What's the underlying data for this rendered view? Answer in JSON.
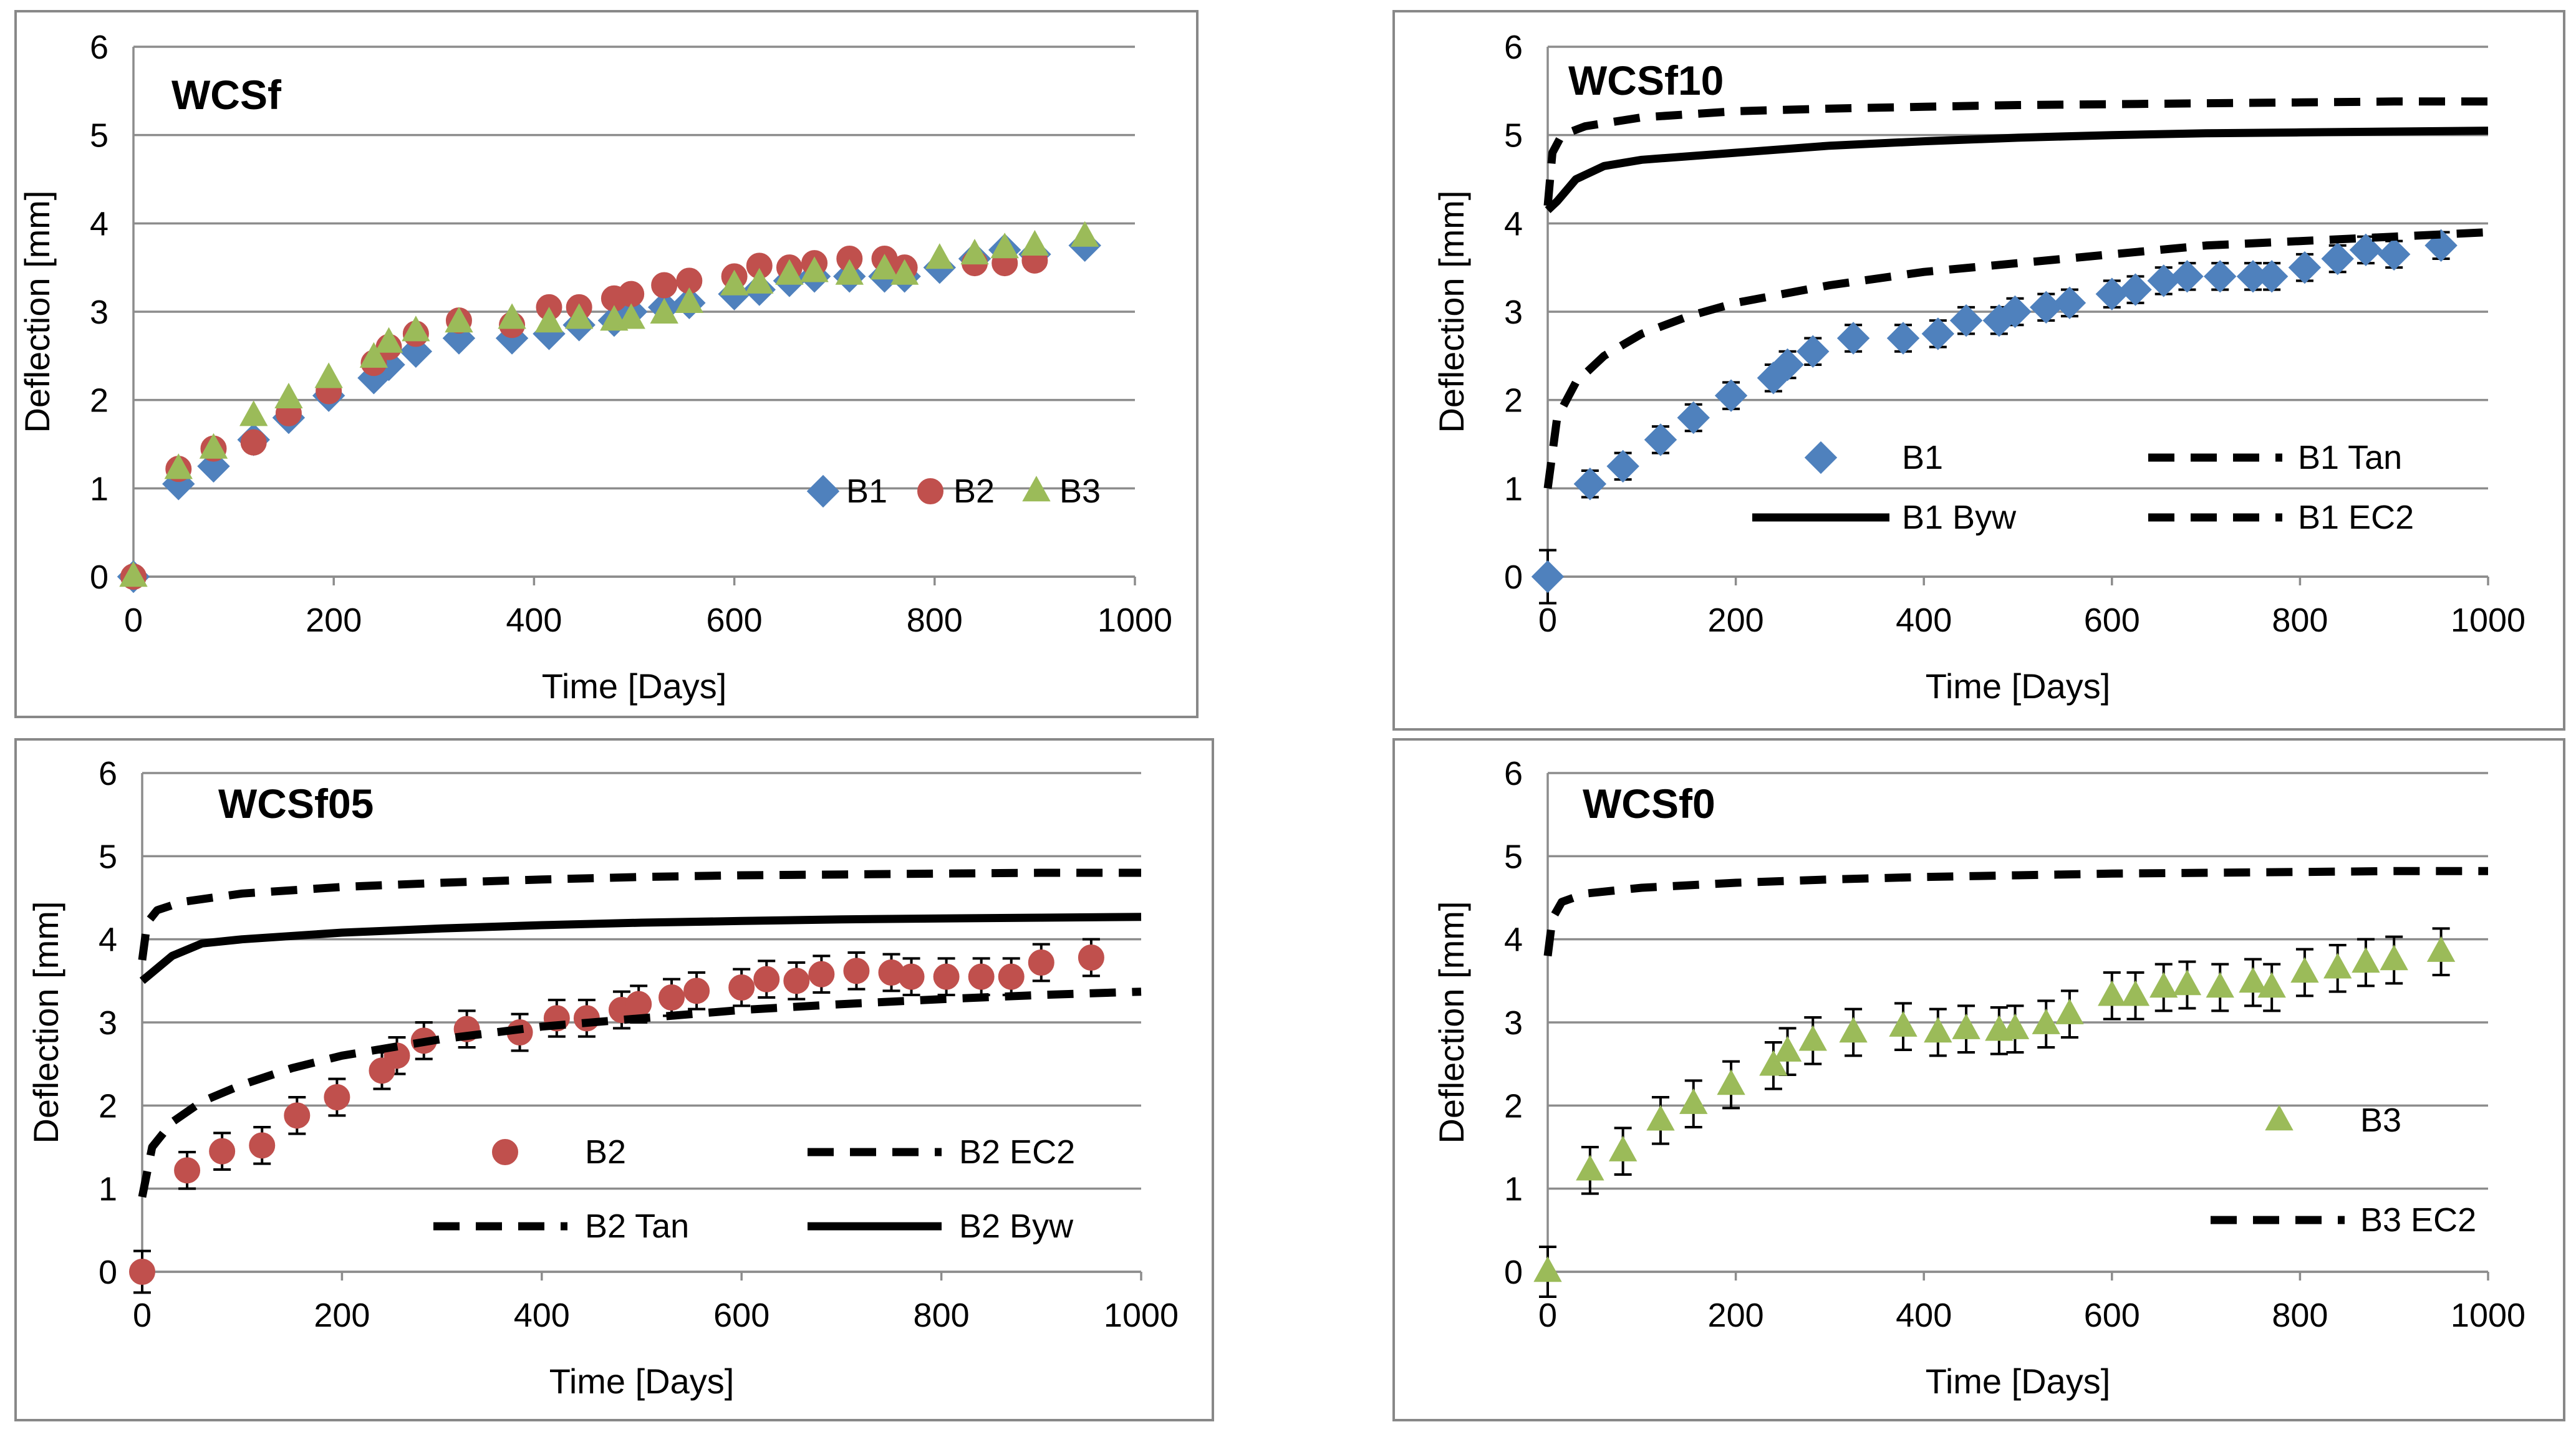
{
  "colors": {
    "B1": "#4f81bd",
    "B2": "#c0504d",
    "B3": "#9bbb59",
    "model": "#000000",
    "grid": "#8c8c8c"
  },
  "chart_data": [
    {
      "type": "scatter",
      "title": "WCSf",
      "xlabel": "Time [Days]",
      "ylabel": "Deflection [mm]",
      "xlim": [
        0,
        1000
      ],
      "ylim": [
        0,
        6
      ],
      "xticks": [
        0,
        200,
        400,
        600,
        800,
        1000
      ],
      "yticks": [
        0,
        1,
        2,
        3,
        4,
        5,
        6
      ],
      "legend": "bottom-right",
      "series": [
        {
          "name": "B1",
          "marker": "diamond",
          "color": "#4f81bd",
          "x": [
            0,
            45,
            80,
            120,
            155,
            195,
            240,
            255,
            282,
            325,
            378,
            415,
            445,
            480,
            497,
            530,
            555,
            600,
            625,
            655,
            680,
            715,
            750,
            770,
            805,
            840,
            870,
            900,
            950
          ],
          "y": [
            0,
            1.05,
            1.25,
            1.55,
            1.8,
            2.05,
            2.25,
            2.4,
            2.55,
            2.7,
            2.7,
            2.75,
            2.85,
            2.9,
            3.0,
            3.05,
            3.1,
            3.2,
            3.25,
            3.35,
            3.4,
            3.4,
            3.4,
            3.4,
            3.5,
            3.6,
            3.7,
            3.65,
            3.75
          ]
        },
        {
          "name": "B2",
          "marker": "circle",
          "color": "#c0504d",
          "x": [
            0,
            45,
            80,
            120,
            155,
            195,
            240,
            255,
            282,
            325,
            378,
            415,
            445,
            480,
            497,
            530,
            555,
            600,
            625,
            655,
            680,
            715,
            750,
            770,
            840,
            870,
            900
          ],
          "y": [
            0,
            1.22,
            1.45,
            1.52,
            1.85,
            2.1,
            2.42,
            2.6,
            2.75,
            2.9,
            2.85,
            3.05,
            3.05,
            3.15,
            3.2,
            3.3,
            3.35,
            3.4,
            3.52,
            3.5,
            3.55,
            3.6,
            3.6,
            3.5,
            3.55,
            3.55,
            3.58
          ]
        },
        {
          "name": "B3",
          "marker": "triangle",
          "color": "#9bbb59",
          "x": [
            0,
            45,
            80,
            120,
            155,
            195,
            240,
            255,
            282,
            325,
            378,
            415,
            445,
            480,
            497,
            530,
            555,
            600,
            625,
            655,
            680,
            715,
            750,
            770,
            805,
            840,
            870,
            900,
            950
          ],
          "y": [
            0,
            1.22,
            1.45,
            1.82,
            2.02,
            2.25,
            2.48,
            2.65,
            2.78,
            2.88,
            2.92,
            2.88,
            2.92,
            2.9,
            2.92,
            2.98,
            3.1,
            3.3,
            3.32,
            3.42,
            3.45,
            3.42,
            3.48,
            3.42,
            3.6,
            3.65,
            3.72,
            3.75,
            3.85
          ]
        }
      ]
    },
    {
      "type": "scatter",
      "title": "WCSf10",
      "xlabel": "Time [Days]",
      "ylabel": "Deflection [mm]",
      "xlim": [
        0,
        1000
      ],
      "ylim": [
        0,
        6
      ],
      "xticks": [
        0,
        200,
        400,
        600,
        800,
        1000
      ],
      "yticks": [
        0,
        1,
        2,
        3,
        4,
        5,
        6
      ],
      "legend": "center-right",
      "series": [
        {
          "name": "B1",
          "marker": "diamond",
          "color": "#4f81bd",
          "error_bars": true,
          "x": [
            0,
            45,
            80,
            120,
            155,
            195,
            240,
            255,
            282,
            325,
            378,
            415,
            445,
            480,
            497,
            530,
            555,
            600,
            625,
            655,
            680,
            715,
            750,
            770,
            805,
            840,
            870,
            900,
            950
          ],
          "y": [
            0,
            1.05,
            1.25,
            1.55,
            1.8,
            2.05,
            2.25,
            2.4,
            2.55,
            2.7,
            2.7,
            2.75,
            2.9,
            2.9,
            3.0,
            3.05,
            3.1,
            3.2,
            3.25,
            3.35,
            3.4,
            3.4,
            3.4,
            3.4,
            3.5,
            3.6,
            3.7,
            3.65,
            3.75
          ],
          "error": [
            0.3,
            0.15,
            0.15,
            0.15,
            0.15,
            0.15,
            0.15,
            0.15,
            0.15,
            0.15,
            0.15,
            0.15,
            0.15,
            0.15,
            0.15,
            0.15,
            0.15,
            0.15,
            0.15,
            0.15,
            0.15,
            0.15,
            0.15,
            0.15,
            0.15,
            0.15,
            0.15,
            0.15,
            0.15
          ]
        },
        {
          "name": "B1 Tan",
          "style": "dashed",
          "x": [
            0,
            10,
            30,
            60,
            100,
            150,
            200,
            300,
            400,
            500,
            600,
            700,
            800,
            900,
            1000
          ],
          "y": [
            1.0,
            1.8,
            2.2,
            2.5,
            2.75,
            2.95,
            3.1,
            3.3,
            3.45,
            3.55,
            3.65,
            3.75,
            3.8,
            3.85,
            3.9
          ]
        },
        {
          "name": "B1 Byw",
          "style": "solid",
          "x": [
            0,
            10,
            30,
            60,
            100,
            200,
            300,
            400,
            500,
            600,
            700,
            800,
            900,
            1000
          ],
          "y": [
            4.15,
            4.25,
            4.5,
            4.65,
            4.72,
            4.8,
            4.88,
            4.93,
            4.97,
            5.0,
            5.02,
            5.03,
            5.04,
            5.05
          ]
        },
        {
          "name": "B1 EC2",
          "style": "dashed",
          "x": [
            0,
            5,
            15,
            40,
            100,
            200,
            300,
            400,
            500,
            600,
            700,
            800,
            900,
            1000
          ],
          "y": [
            4.2,
            4.8,
            5.0,
            5.1,
            5.2,
            5.27,
            5.3,
            5.32,
            5.34,
            5.35,
            5.36,
            5.37,
            5.38,
            5.38
          ]
        }
      ]
    },
    {
      "type": "scatter",
      "title": "WCSf05",
      "xlabel": "Time [Days]",
      "ylabel": "Deflection [mm]",
      "xlim": [
        0,
        1000
      ],
      "ylim": [
        0,
        6
      ],
      "xticks": [
        0,
        200,
        400,
        600,
        800,
        1000
      ],
      "yticks": [
        0,
        1,
        2,
        3,
        4,
        5,
        6
      ],
      "legend": "bottom-right",
      "series": [
        {
          "name": "B2",
          "marker": "circle",
          "color": "#c0504d",
          "error_bars": true,
          "x": [
            0,
            45,
            80,
            120,
            155,
            195,
            240,
            255,
            282,
            325,
            378,
            415,
            445,
            480,
            497,
            530,
            555,
            600,
            625,
            655,
            680,
            715,
            750,
            770,
            805,
            840,
            870,
            900,
            950
          ],
          "y": [
            0,
            1.22,
            1.45,
            1.52,
            1.88,
            2.1,
            2.42,
            2.6,
            2.78,
            2.92,
            2.88,
            3.05,
            3.05,
            3.15,
            3.22,
            3.3,
            3.38,
            3.42,
            3.52,
            3.5,
            3.58,
            3.62,
            3.6,
            3.55,
            3.55,
            3.55,
            3.55,
            3.72,
            3.78
          ],
          "error": [
            0.25,
            0.22,
            0.22,
            0.22,
            0.22,
            0.22,
            0.22,
            0.22,
            0.22,
            0.22,
            0.22,
            0.22,
            0.22,
            0.22,
            0.22,
            0.22,
            0.22,
            0.22,
            0.22,
            0.22,
            0.22,
            0.22,
            0.22,
            0.22,
            0.22,
            0.22,
            0.22,
            0.22,
            0.22
          ]
        },
        {
          "name": "B2 EC2",
          "style": "dashed",
          "x": [
            0,
            5,
            15,
            40,
            100,
            200,
            300,
            400,
            500,
            600,
            700,
            800,
            900,
            1000
          ],
          "y": [
            3.75,
            4.2,
            4.35,
            4.45,
            4.55,
            4.63,
            4.68,
            4.72,
            4.75,
            4.77,
            4.78,
            4.79,
            4.8,
            4.8
          ]
        },
        {
          "name": "B2 Tan",
          "style": "dashed",
          "x": [
            0,
            10,
            30,
            60,
            100,
            150,
            200,
            300,
            400,
            500,
            600,
            700,
            800,
            900,
            1000
          ],
          "y": [
            0.9,
            1.5,
            1.8,
            2.05,
            2.25,
            2.45,
            2.6,
            2.8,
            2.95,
            3.05,
            3.15,
            3.22,
            3.28,
            3.33,
            3.37
          ]
        },
        {
          "name": "B2 Byw",
          "style": "solid",
          "x": [
            0,
            10,
            30,
            60,
            100,
            200,
            300,
            400,
            500,
            600,
            700,
            800,
            900,
            1000
          ],
          "y": [
            3.5,
            3.6,
            3.8,
            3.95,
            4.0,
            4.08,
            4.13,
            4.17,
            4.2,
            4.22,
            4.24,
            4.25,
            4.26,
            4.27
          ]
        }
      ]
    },
    {
      "type": "scatter",
      "title": "WCSf0",
      "xlabel": "Time [Days]",
      "ylabel": "Deflection [mm]",
      "xlim": [
        0,
        1000
      ],
      "ylim": [
        0,
        6
      ],
      "xticks": [
        0,
        200,
        400,
        600,
        800,
        1000
      ],
      "yticks": [
        0,
        1,
        2,
        3,
        4,
        5,
        6
      ],
      "legend": "bottom-right",
      "series": [
        {
          "name": "B3",
          "marker": "triangle",
          "color": "#9bbb59",
          "error_bars": true,
          "x": [
            0,
            45,
            80,
            120,
            155,
            195,
            240,
            255,
            282,
            325,
            378,
            415,
            445,
            480,
            497,
            530,
            555,
            600,
            625,
            655,
            680,
            715,
            750,
            770,
            805,
            840,
            870,
            900,
            950
          ],
          "y": [
            0,
            1.22,
            1.45,
            1.82,
            2.02,
            2.25,
            2.48,
            2.65,
            2.78,
            2.88,
            2.95,
            2.88,
            2.92,
            2.9,
            2.92,
            2.98,
            3.1,
            3.32,
            3.32,
            3.42,
            3.45,
            3.42,
            3.48,
            3.42,
            3.6,
            3.65,
            3.72,
            3.75,
            3.85
          ],
          "error": [
            0.3,
            0.28,
            0.28,
            0.28,
            0.28,
            0.28,
            0.28,
            0.28,
            0.28,
            0.28,
            0.28,
            0.28,
            0.28,
            0.28,
            0.28,
            0.28,
            0.28,
            0.28,
            0.28,
            0.28,
            0.28,
            0.28,
            0.28,
            0.28,
            0.28,
            0.28,
            0.28,
            0.28,
            0.28
          ]
        },
        {
          "name": "B3 EC2",
          "style": "dashed",
          "x": [
            0,
            5,
            15,
            40,
            100,
            200,
            300,
            400,
            500,
            600,
            700,
            800,
            900,
            1000
          ],
          "y": [
            3.8,
            4.25,
            4.45,
            4.55,
            4.62,
            4.68,
            4.72,
            4.75,
            4.77,
            4.79,
            4.8,
            4.81,
            4.82,
            4.82
          ]
        }
      ]
    }
  ]
}
